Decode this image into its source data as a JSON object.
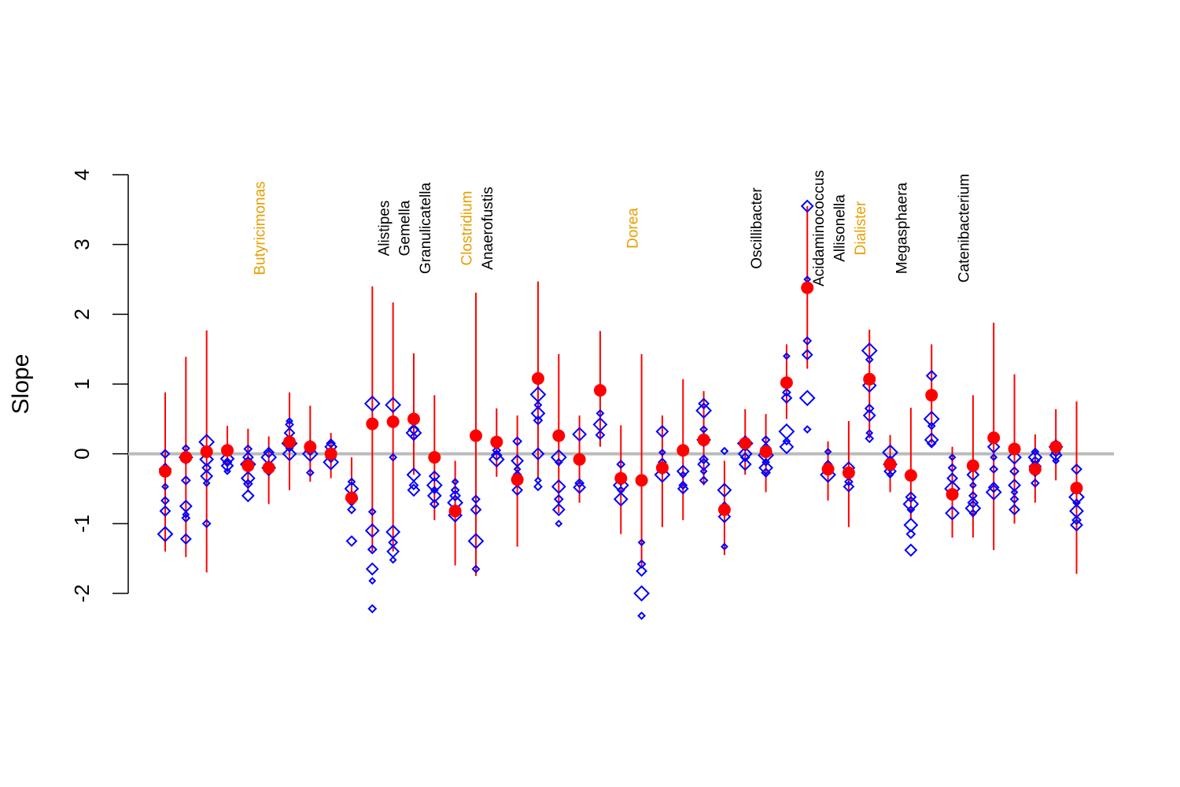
{
  "chart_data": {
    "type": "scatter",
    "title": "",
    "xlabel": "",
    "ylabel": "Slope",
    "ylim": [
      -2,
      4
    ],
    "y_ticks": [
      "-2",
      "-1",
      "0",
      "1",
      "2",
      "3",
      "4"
    ],
    "reference_line": 0,
    "colors": {
      "estimate": "#ff0000",
      "interval": "#ff0000",
      "individual": "#0000ff",
      "reference": "#bbbbbb",
      "label_highlight": "#e69f00",
      "label_default": "#000000"
    },
    "genus_labels": [
      {
        "index": 4,
        "name": "Butyricimonas",
        "highlight": true
      },
      {
        "index": 10,
        "name": "Alistipes",
        "highlight": false
      },
      {
        "index": 11,
        "name": "Gemella",
        "highlight": false
      },
      {
        "index": 12,
        "name": "Granulicatella",
        "highlight": false
      },
      {
        "index": 14,
        "name": "Clostridium",
        "highlight": true
      },
      {
        "index": 15,
        "name": "Anaerofustis",
        "highlight": false
      },
      {
        "index": 22,
        "name": "Dorea",
        "highlight": true
      },
      {
        "index": 28,
        "name": "Oscillibacter",
        "highlight": false
      },
      {
        "index": 31,
        "name": "Acidaminococcus",
        "highlight": false
      },
      {
        "index": 32,
        "name": "Allisonella",
        "highlight": false
      },
      {
        "index": 33,
        "name": "Dialister",
        "highlight": true
      },
      {
        "index": 35,
        "name": "Megasphaera",
        "highlight": false
      },
      {
        "index": 38,
        "name": "Catenibacterium",
        "highlight": false
      }
    ],
    "series": [
      {
        "name": "estimate",
        "values": [
          -0.25,
          -0.05,
          0.03,
          0.05,
          -0.17,
          -0.2,
          0.17,
          0.1,
          0.0,
          -0.63,
          0.43,
          0.46,
          0.5,
          -0.05,
          -0.82,
          0.26,
          0.17,
          -0.37,
          1.08,
          0.26,
          -0.08,
          0.91,
          -0.35,
          -0.38,
          -0.2,
          0.05,
          0.2,
          -0.8,
          0.15,
          0.03,
          1.02,
          2.38,
          -0.22,
          -0.27,
          1.07,
          -0.15,
          -0.31,
          0.84,
          -0.58,
          -0.17,
          0.23,
          0.07,
          -0.22,
          0.1,
          -0.49
        ]
      },
      {
        "name": "interval_low",
        "values": [
          -1.4,
          -1.48,
          -1.7,
          -0.25,
          -0.55,
          -0.72,
          -0.52,
          -0.4,
          -0.35,
          -0.05,
          -1.4,
          -1.4,
          -0.3,
          -0.95,
          -1.6,
          -1.75,
          -0.33,
          -1.33,
          -0.35,
          -0.85,
          -0.7,
          0.1,
          -1.15,
          -1.6,
          -1.05,
          -0.95,
          -0.45,
          -1.45,
          -0.3,
          -0.55,
          0.5,
          1.22,
          -0.67,
          -1.05,
          0.22,
          -0.55,
          -0.95,
          0.15,
          -1.2,
          -1.2,
          -1.38,
          -1.0,
          -0.7,
          -0.38,
          -1.72
        ]
      },
      {
        "name": "interval_high",
        "values": [
          0.88,
          1.39,
          1.77,
          0.4,
          0.36,
          0.25,
          0.88,
          0.69,
          0.3,
          -0.6,
          2.4,
          2.17,
          1.44,
          0.84,
          -0.1,
          2.31,
          0.65,
          0.55,
          2.47,
          1.43,
          0.55,
          1.76,
          0.41,
          1.43,
          0.55,
          1.07,
          0.9,
          -0.1,
          0.64,
          0.57,
          1.57,
          3.55,
          0.18,
          0.47,
          1.78,
          0.27,
          0.66,
          1.57,
          0.1,
          0.84,
          1.88,
          1.14,
          0.28,
          0.64,
          0.75
        ]
      },
      {
        "name": "individual",
        "points": [
          [
            -1.15,
            -0.82,
            -0.67,
            -0.47,
            -0.22,
            0.0
          ],
          [
            -1.22,
            -0.92,
            -0.87,
            -0.75,
            -0.38,
            -0.05,
            0.08
          ],
          [
            -1.0,
            -0.42,
            -0.32,
            -0.2,
            -0.08,
            0.05,
            0.17
          ],
          [
            -0.25,
            -0.17,
            -0.12,
            -0.07,
            0.05
          ],
          [
            -0.6,
            -0.43,
            -0.35,
            -0.22,
            -0.15,
            -0.05,
            0.07
          ],
          [
            -0.25,
            -0.2,
            -0.15,
            -0.05,
            0.02
          ],
          [
            0.0,
            0.08,
            0.15,
            0.3,
            0.42,
            0.47
          ],
          [
            -0.27,
            0.0,
            0.05,
            0.1,
            0.15
          ],
          [
            -0.12,
            -0.05,
            0.0,
            0.05,
            0.1,
            0.15
          ],
          [
            -1.25,
            -0.8,
            -0.7,
            -0.65,
            -0.6,
            -0.5,
            -0.4
          ],
          [
            -2.22,
            -1.82,
            -1.65,
            -1.37,
            -1.1,
            -0.83,
            0.72
          ],
          [
            -1.52,
            -1.4,
            -1.27,
            -1.12,
            -0.05,
            0.7
          ],
          [
            -0.52,
            -0.45,
            -0.3,
            0.25,
            0.3,
            0.35
          ],
          [
            -0.72,
            -0.6,
            -0.52,
            -0.45,
            -0.32
          ],
          [
            -0.88,
            -0.78,
            -0.7,
            -0.6,
            -0.52,
            -0.4
          ],
          [
            -1.65,
            -1.25,
            -0.8,
            -0.65,
            0.27
          ],
          [
            -0.08,
            -0.02,
            0.05
          ],
          [
            -0.52,
            -0.3,
            -0.22,
            -0.1,
            0.18
          ],
          [
            -0.47,
            -0.38,
            0.0,
            0.48,
            0.58,
            0.7,
            0.85
          ],
          [
            -1.0,
            -0.8,
            -0.65,
            -0.47,
            -0.12,
            -0.05
          ],
          [
            -0.48,
            -0.42,
            0.28
          ],
          [
            0.27,
            0.42,
            0.58
          ],
          [
            -0.65,
            -0.52,
            -0.45,
            -0.38,
            -0.15
          ],
          [
            -2.32,
            -2.0,
            -1.68,
            -1.58,
            -1.27
          ],
          [
            -0.3,
            -0.22,
            -0.12,
            0.02,
            0.32
          ],
          [
            -0.5,
            -0.45,
            -0.3,
            -0.25,
            0.03
          ],
          [
            -0.38,
            -0.25,
            -0.15,
            -0.08,
            0.2,
            0.35,
            0.62,
            0.72
          ],
          [
            -1.33,
            -0.9,
            -0.75,
            -0.52,
            0.04
          ],
          [
            -0.15,
            -0.05,
            0.0,
            0.1,
            0.15
          ],
          [
            -0.27,
            -0.2,
            -0.12,
            -0.02,
            0.08,
            0.2
          ],
          [
            0.1,
            0.18,
            0.32,
            0.8,
            0.88,
            1.4
          ],
          [
            0.35,
            0.8,
            1.42,
            1.62,
            2.5,
            3.55
          ],
          [
            -0.3,
            -0.22,
            -0.15,
            0.03
          ],
          [
            -0.47,
            -0.4,
            -0.3,
            -0.2
          ],
          [
            0.22,
            0.3,
            0.55,
            0.65,
            0.98,
            1.35,
            1.48
          ],
          [
            -0.3,
            -0.25,
            -0.2,
            -0.15,
            -0.08,
            0.02
          ],
          [
            -1.38,
            -1.15,
            -1.02,
            -0.8,
            -0.72,
            -0.62
          ],
          [
            0.15,
            0.2,
            0.4,
            0.5,
            1.12
          ],
          [
            -0.85,
            -0.6,
            -0.5,
            -0.35,
            -0.2,
            -0.05
          ],
          [
            -0.85,
            -0.78,
            -0.7,
            -0.6,
            -0.45,
            -0.3
          ],
          [
            -0.55,
            -0.48,
            -0.22,
            -0.05,
            0.1
          ],
          [
            -0.8,
            -0.65,
            -0.55,
            -0.45,
            -0.25,
            -0.05
          ],
          [
            -0.42,
            -0.28,
            -0.18,
            -0.1,
            -0.05,
            0.03
          ],
          [
            -0.1,
            -0.02,
            0.02,
            0.1,
            0.15
          ],
          [
            -1.02,
            -0.95,
            -0.82,
            -0.7,
            -0.62,
            -0.22
          ]
        ]
      }
    ]
  }
}
